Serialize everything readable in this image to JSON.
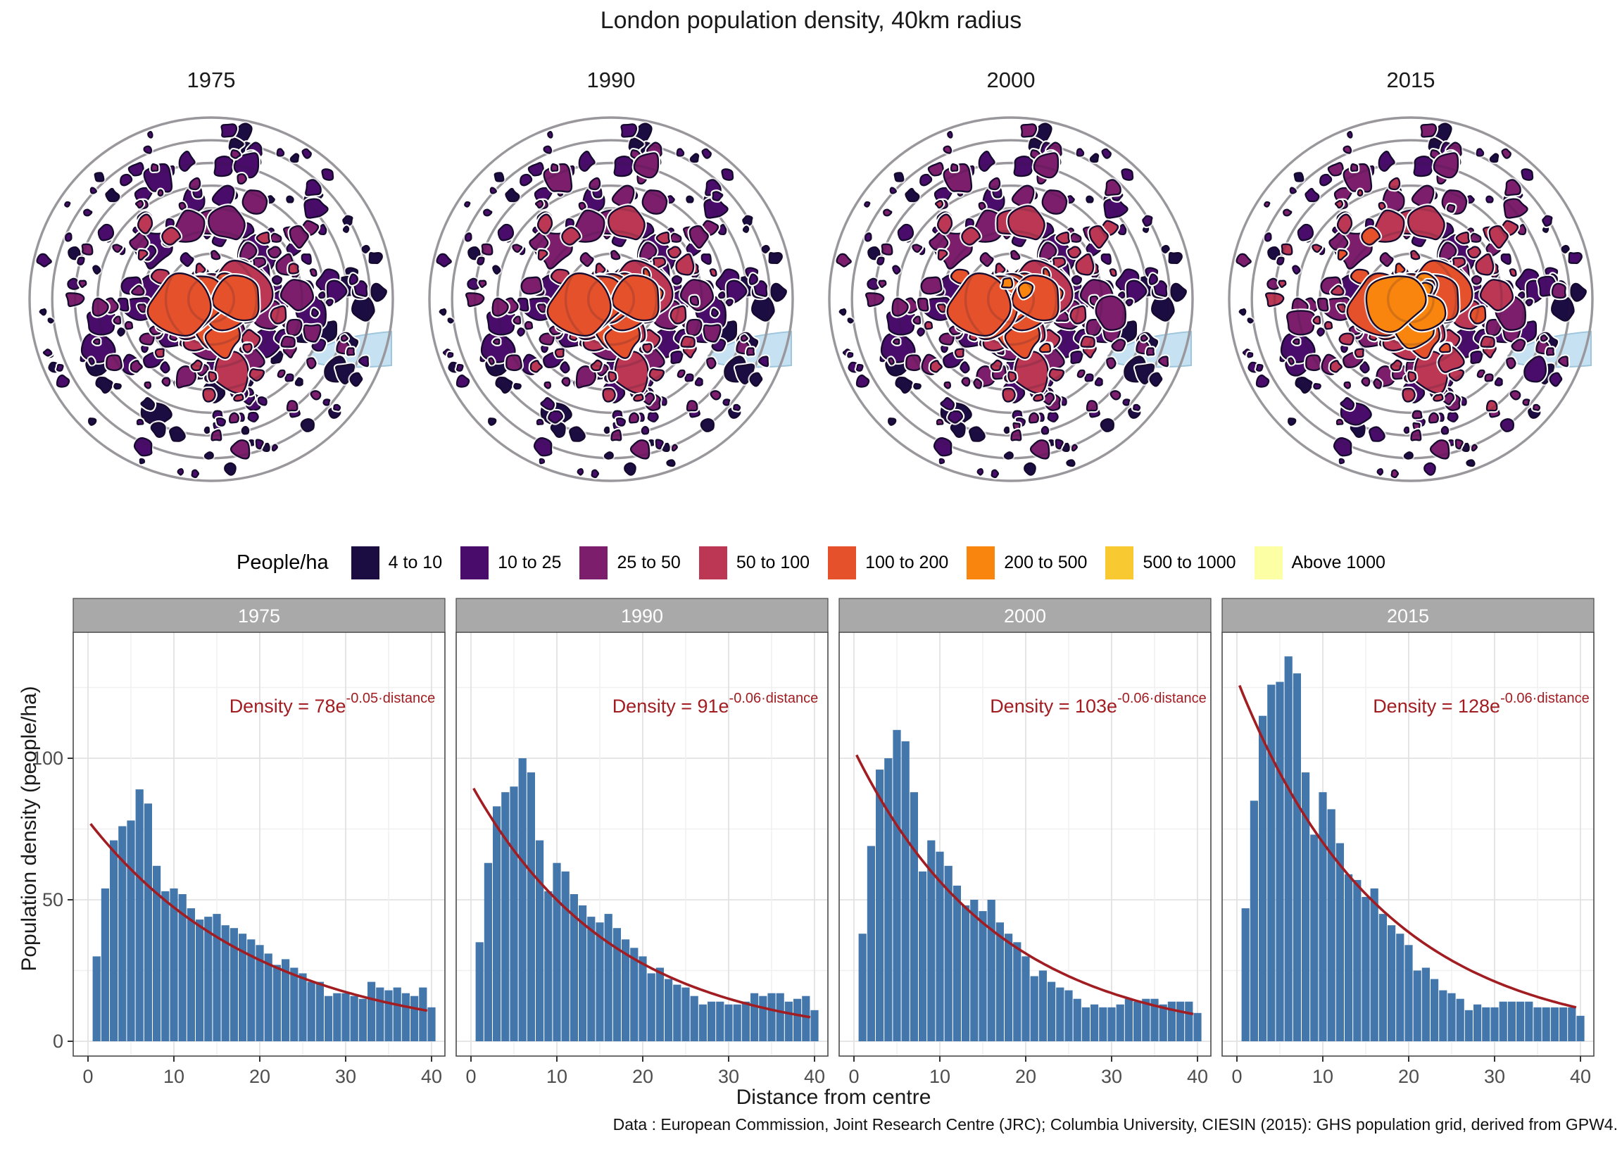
{
  "title": "London population density, 40km radius",
  "caption": "Data : European Commission, Joint Research Centre (JRC); Columbia University, CIESIN (2015): GHS population grid, derived from GPW4.",
  "legend": {
    "title": "People/ha",
    "bins": [
      {
        "label": "4 to 10",
        "color": "#1B0C42"
      },
      {
        "label": "10 to 25",
        "color": "#4A0C6B"
      },
      {
        "label": "25 to 50",
        "color": "#7D1E6D"
      },
      {
        "label": "50 to 100",
        "color": "#BB3754"
      },
      {
        "label": "100 to 200",
        "color": "#E4512B"
      },
      {
        "label": "200 to 500",
        "color": "#F9850E"
      },
      {
        "label": "500 to 1000",
        "color": "#F9C932"
      },
      {
        "label": "Above 1000",
        "color": "#FCFFA4"
      }
    ]
  },
  "colors": {
    "bar": "#4377AC",
    "curve": "#A11D21",
    "strip_bg": "#A9A9A9",
    "strip_text": "#FFFFFF",
    "ring": "#B3B3B3",
    "ring_overlay": "rgba(45,25,55,0.18)",
    "water": "#C6E2F2",
    "water_edge": "#9FC6DC",
    "blob_outline": "#150A2E",
    "grid_major": "#E2E2E2",
    "grid_minor": "#F0F0F0",
    "panel_border": "#4A4A4A",
    "axis_text": "#4D4D4D"
  },
  "chart_data": {
    "type": "bar",
    "title": "London population density, 40km radius",
    "xlabel": "Distance from centre",
    "ylabel": "Population density (people/ha)",
    "x_description": "distance bins 1 to 40 km from centre, 1 km wide bars",
    "x_ticks": [
      "0",
      "10",
      "20",
      "30",
      "40"
    ],
    "y_ticks": [
      "0",
      "50",
      "100"
    ],
    "xlim": [
      -1,
      41
    ],
    "ylim": [
      -6,
      144
    ],
    "grid": true,
    "legend_position": "none",
    "series": [
      {
        "name": "1975",
        "fit": {
          "coeff": 78,
          "rate": -0.05,
          "label_base": "Density = 78e",
          "label_exponent": "-0.05·distance"
        },
        "values": [
          30,
          54,
          71,
          76,
          78,
          89,
          84,
          62,
          53,
          54,
          52,
          47,
          43,
          44,
          45,
          41,
          40,
          38,
          36,
          34,
          31,
          27,
          29,
          26,
          24,
          21,
          21,
          16,
          17,
          17,
          16,
          15,
          21,
          19,
          18,
          19,
          17,
          16,
          19,
          12
        ]
      },
      {
        "name": "1990",
        "fit": {
          "coeff": 91,
          "rate": -0.06,
          "label_base": "Density = 91e",
          "label_exponent": "-0.06·distance"
        },
        "values": [
          35,
          63,
          83,
          88,
          90,
          100,
          95,
          71,
          53,
          63,
          60,
          52,
          48,
          44,
          42,
          45,
          40,
          36,
          33,
          30,
          24,
          26,
          22,
          20,
          19,
          16,
          13,
          14,
          14,
          13,
          13,
          14,
          17,
          16,
          17,
          17,
          14,
          15,
          16,
          11
        ]
      },
      {
        "name": "2000",
        "fit": {
          "coeff": 103,
          "rate": -0.06,
          "label_base": "Density = 103e",
          "label_exponent": "-0.06·distance"
        },
        "values": [
          38,
          69,
          96,
          100,
          110,
          106,
          88,
          60,
          71,
          67,
          62,
          55,
          48,
          50,
          46,
          50,
          42,
          38,
          35,
          30,
          23,
          25,
          21,
          19,
          18,
          15,
          12,
          13,
          12,
          12,
          13,
          15,
          14,
          15,
          15,
          13,
          14,
          14,
          14,
          10
        ]
      },
      {
        "name": "2015",
        "fit": {
          "coeff": 128,
          "rate": -0.06,
          "label_base": "Density = 128e",
          "label_exponent": "-0.06·distance"
        },
        "values": [
          47,
          85,
          115,
          126,
          127,
          136,
          130,
          95,
          73,
          88,
          82,
          70,
          59,
          57,
          51,
          54,
          45,
          41,
          38,
          34,
          25,
          26,
          22,
          18,
          17,
          15,
          11,
          13,
          12,
          12,
          14,
          14,
          14,
          14,
          12,
          12,
          12,
          12,
          12,
          9
        ]
      }
    ]
  }
}
